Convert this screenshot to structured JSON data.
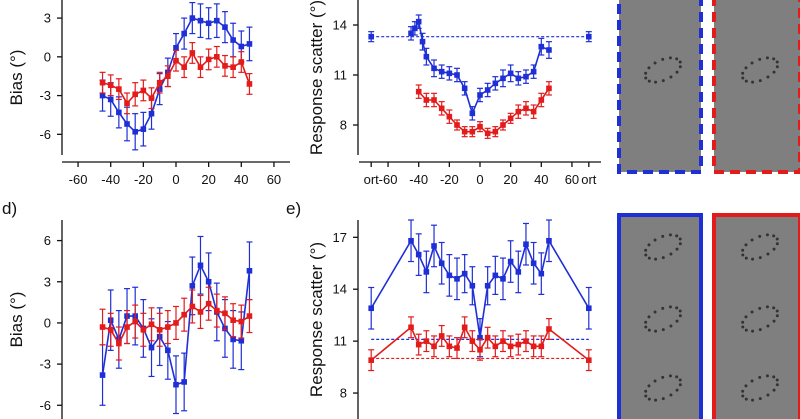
{
  "colors": {
    "blue": "#1f2fd6",
    "red": "#e31b1b",
    "gray_panel": "#7f7f7f",
    "ellipse_dots": "#333333"
  },
  "chart_data": [
    {
      "id": "b",
      "type": "line",
      "panel_letter": "",
      "ylabel": "Bias (°)",
      "xlim": [
        -68,
        68
      ],
      "ylim": [
        -7.6,
        4.4
      ],
      "xticks": [
        -60,
        -40,
        -20,
        0,
        20,
        40,
        60
      ],
      "xtick_labels": [
        "-60",
        "-40",
        "-20",
        "0",
        "20",
        "40",
        "60"
      ],
      "yticks": [
        -6,
        -3,
        0,
        3
      ],
      "ytick_labels": [
        "-6",
        "-3",
        "0",
        "3"
      ],
      "series": [
        {
          "name": "blue",
          "color": "blue",
          "x": [
            -45,
            -40,
            -35,
            -30,
            -25,
            -20,
            -15,
            -10,
            -5,
            0,
            5,
            10,
            15,
            20,
            25,
            30,
            35,
            40,
            45
          ],
          "y": [
            -3.0,
            -3.3,
            -4.3,
            -5.2,
            -5.8,
            -5.6,
            -4.4,
            -2.5,
            -1.2,
            0.7,
            1.8,
            3.0,
            2.8,
            2.6,
            2.8,
            2.3,
            1.3,
            0.8,
            1.0
          ],
          "err": [
            1.2,
            1.3,
            1.2,
            1.3,
            1.4,
            1.3,
            1.2,
            1.2,
            1.1,
            1.1,
            1.2,
            1.2,
            1.3,
            1.2,
            1.3,
            1.2,
            1.3,
            1.2,
            1.3
          ]
        },
        {
          "name": "red",
          "color": "red",
          "x": [
            -45,
            -40,
            -35,
            -30,
            -25,
            -20,
            -15,
            -10,
            -5,
            0,
            5,
            10,
            15,
            20,
            25,
            30,
            35,
            40,
            45
          ],
          "y": [
            -2.0,
            -2.2,
            -2.5,
            -3.6,
            -2.9,
            -2.6,
            -3.2,
            -2.0,
            -1.5,
            -0.3,
            -0.8,
            0.3,
            -0.8,
            -0.2,
            0.0,
            -0.7,
            -0.8,
            -0.4,
            -2.1
          ],
          "err": [
            0.8,
            0.8,
            0.8,
            0.8,
            0.9,
            0.8,
            0.8,
            0.8,
            0.8,
            0.8,
            0.8,
            0.8,
            0.8,
            0.8,
            0.8,
            0.8,
            0.8,
            0.8,
            0.8
          ]
        }
      ]
    },
    {
      "id": "c",
      "type": "line",
      "panel_letter": "",
      "ylabel": "Response scatter (°)",
      "xlim": [
        -77,
        77
      ],
      "ylim": [
        6.2,
        15.5
      ],
      "xticks": [
        -71,
        -60,
        -40,
        -20,
        0,
        20,
        40,
        60,
        71
      ],
      "xtick_labels": [
        "ort",
        "-60",
        "-40",
        "-20",
        "0",
        "20",
        "40",
        "60",
        "ort"
      ],
      "yticks": [
        8,
        11,
        14
      ],
      "ytick_labels": [
        "8",
        "11",
        "14"
      ],
      "series": [
        {
          "name": "blue",
          "color": "blue",
          "x": [
            -45,
            -42.5,
            -40,
            -37.5,
            -35,
            -30,
            -25,
            -20,
            -15,
            -10,
            -5,
            0,
            5,
            10,
            15,
            20,
            25,
            30,
            35,
            40,
            45
          ],
          "y": [
            13.5,
            13.8,
            14.2,
            13.0,
            12.1,
            11.4,
            11.2,
            11.1,
            11.0,
            10.2,
            8.7,
            9.8,
            10.1,
            10.5,
            10.8,
            11.1,
            10.8,
            10.9,
            11.2,
            12.7,
            12.5
          ],
          "err": [
            0.4,
            0.4,
            0.4,
            0.5,
            0.5,
            0.5,
            0.4,
            0.4,
            0.4,
            0.4,
            0.4,
            0.4,
            0.4,
            0.4,
            0.5,
            0.5,
            0.4,
            0.4,
            0.4,
            0.5,
            0.5
          ]
        },
        {
          "name": "red",
          "color": "red",
          "x": [
            -40,
            -35,
            -30,
            -25,
            -20,
            -15,
            -10,
            -5,
            0,
            5,
            10,
            15,
            20,
            25,
            30,
            35,
            40,
            45
          ],
          "y": [
            10.0,
            9.5,
            9.5,
            9.0,
            8.5,
            8.0,
            7.6,
            7.6,
            7.9,
            7.5,
            7.6,
            8.0,
            8.4,
            8.8,
            9.0,
            8.8,
            9.5,
            10.2
          ],
          "err": [
            0.4,
            0.4,
            0.4,
            0.4,
            0.4,
            0.3,
            0.3,
            0.3,
            0.3,
            0.3,
            0.3,
            0.3,
            0.3,
            0.4,
            0.4,
            0.4,
            0.4,
            0.4
          ]
        },
        {
          "name": "blue-ort",
          "color": "blue",
          "x": [
            -71,
            71
          ],
          "y": [
            13.3,
            13.3
          ],
          "err": [
            0.3,
            0.3
          ],
          "dashed_reference": true
        }
      ]
    },
    {
      "id": "d",
      "type": "line",
      "panel_letter": "d)",
      "ylabel": "Bias (°)",
      "xlim": [
        -68,
        68
      ],
      "ylim": [
        -7.0,
        7.5
      ],
      "xticks": [],
      "xtick_labels": [],
      "yticks": [
        -6,
        -3,
        0,
        3,
        6
      ],
      "ytick_labels": [
        "-6",
        "-3",
        "0",
        "3",
        "6"
      ],
      "series": [
        {
          "name": "blue",
          "color": "blue",
          "x": [
            -45,
            -40,
            -35,
            -30,
            -25,
            -20,
            -15,
            -10,
            -5,
            0,
            5,
            10,
            15,
            20,
            25,
            30,
            35,
            40,
            45
          ],
          "y": [
            -3.8,
            0.2,
            -1.2,
            0.5,
            0.5,
            -0.4,
            -1.8,
            -1.0,
            -2.0,
            -4.5,
            -4.3,
            2.7,
            4.2,
            3.0,
            0.8,
            -0.4,
            -1.2,
            -1.3,
            3.8
          ],
          "err": [
            2.2,
            2.2,
            2.1,
            2.0,
            2.1,
            2.1,
            2.1,
            2.1,
            2.1,
            2.1,
            2.1,
            2.1,
            2.1,
            2.1,
            2.1,
            2.1,
            2.1,
            2.1,
            2.1
          ]
        },
        {
          "name": "red",
          "color": "red",
          "x": [
            -45,
            -40,
            -35,
            -30,
            -25,
            -20,
            -15,
            -10,
            -5,
            0,
            5,
            10,
            15,
            20,
            25,
            30,
            35,
            40,
            45
          ],
          "y": [
            -0.3,
            -0.5,
            -1.5,
            -0.3,
            0.1,
            -0.5,
            -0.1,
            -0.5,
            -0.3,
            0.0,
            0.6,
            1.2,
            0.8,
            1.4,
            0.9,
            0.7,
            0.2,
            0.1,
            0.5
          ],
          "err": [
            1.3,
            1.2,
            1.2,
            1.2,
            1.2,
            1.2,
            1.2,
            1.2,
            1.2,
            1.2,
            1.2,
            1.2,
            1.2,
            1.2,
            1.2,
            1.2,
            1.2,
            1.2,
            1.2
          ]
        }
      ]
    },
    {
      "id": "e",
      "type": "line",
      "panel_letter": "e)",
      "ylabel": "Response scatter (°)",
      "xlim": [
        -77,
        77
      ],
      "ylim": [
        6.5,
        18.0
      ],
      "xticks": [],
      "xtick_labels": [],
      "yticks": [
        8,
        11,
        14,
        17
      ],
      "ytick_labels": [
        "8",
        "11",
        "14",
        "17"
      ],
      "series": [
        {
          "name": "blue",
          "color": "blue",
          "x": [
            -71,
            -45,
            -40,
            -35,
            -30,
            -25,
            -20,
            -15,
            -10,
            -5,
            0,
            5,
            10,
            15,
            20,
            25,
            30,
            35,
            40,
            45,
            71
          ],
          "y": [
            12.9,
            16.8,
            16.0,
            15.0,
            16.5,
            15.5,
            14.8,
            14.6,
            14.9,
            14.2,
            11.2,
            14.2,
            14.8,
            14.6,
            15.6,
            15.0,
            16.6,
            15.5,
            14.9,
            16.8,
            12.9
          ],
          "err": [
            1.2,
            1.2,
            1.2,
            1.2,
            1.2,
            1.2,
            1.2,
            1.2,
            1.1,
            1.1,
            1.1,
            1.1,
            1.1,
            1.2,
            1.2,
            1.2,
            1.2,
            1.2,
            1.2,
            1.2,
            1.2
          ]
        },
        {
          "name": "red",
          "color": "red",
          "x": [
            -71,
            -45,
            -40,
            -35,
            -30,
            -25,
            -20,
            -15,
            -10,
            -5,
            0,
            5,
            10,
            15,
            20,
            25,
            30,
            35,
            40,
            45,
            71
          ],
          "y": [
            9.9,
            11.8,
            10.8,
            11.0,
            10.7,
            11.3,
            10.7,
            10.6,
            11.8,
            11.0,
            10.5,
            11.2,
            10.7,
            11.0,
            10.7,
            10.8,
            11.0,
            10.7,
            10.7,
            11.7,
            9.9
          ],
          "err": [
            0.6,
            0.6,
            0.6,
            0.6,
            0.6,
            0.6,
            0.6,
            0.6,
            0.6,
            0.6,
            0.6,
            0.6,
            0.6,
            0.6,
            0.6,
            0.6,
            0.6,
            0.6,
            0.6,
            0.6,
            0.6
          ]
        }
      ],
      "reference_lines": [
        {
          "color": "blue",
          "y": 11.1
        },
        {
          "color": "red",
          "y": 10.0
        }
      ]
    }
  ],
  "stimulus_panels": [
    {
      "id": "top-blue",
      "color": "blue",
      "border": "dashed",
      "ellipses": 1
    },
    {
      "id": "top-red",
      "color": "red",
      "border": "dashed",
      "ellipses": 1
    },
    {
      "id": "bottom-blue",
      "color": "blue",
      "border": "solid",
      "ellipses": 3
    },
    {
      "id": "bottom-red",
      "color": "red",
      "border": "solid",
      "ellipses": 3
    }
  ]
}
